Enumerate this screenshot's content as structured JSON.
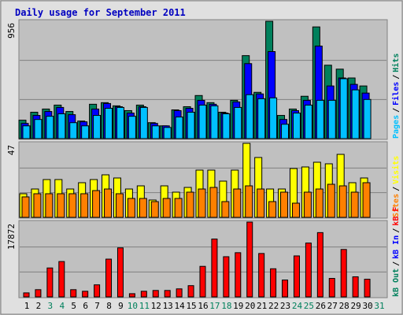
{
  "chart_data": [
    {
      "type": "bar",
      "title": "Daily usage for September 2011",
      "ylim": [
        0,
        956
      ],
      "yticks": [
        956
      ],
      "grid": true,
      "legend_separator": "/",
      "series": [
        {
          "name": "Hits",
          "color": "#00805c",
          "values": [
            150,
            215,
            241,
            273,
            221,
            143,
            280,
            293,
            267,
            228,
            273,
            130,
            104,
            234,
            260,
            351,
            293,
            215,
            312,
            676,
            377,
            956,
            189,
            241,
            345,
            910,
            598,
            566,
            494,
            429,
            0
          ]
        },
        {
          "name": "Files",
          "color": "#0000ff",
          "values": [
            124,
            189,
            221,
            254,
            195,
            137,
            241,
            286,
            260,
            208,
            260,
            124,
            104,
            228,
            247,
            312,
            280,
            208,
            299,
            611,
            364,
            709,
            156,
            228,
            312,
            754,
            429,
            494,
            442,
            371,
            0
          ]
        },
        {
          "name": "Pages",
          "color": "#00c0ff",
          "values": [
            104,
            156,
            182,
            202,
            130,
            104,
            189,
            247,
            254,
            182,
            254,
            104,
            91,
            176,
            215,
            273,
            267,
            202,
            254,
            358,
            325,
            332,
            117,
            208,
            273,
            312,
            312,
            488,
            397,
            319,
            0
          ]
        }
      ]
    },
    {
      "type": "bar",
      "ylim": [
        0,
        47
      ],
      "yticks": [
        47
      ],
      "grid": true,
      "legend_separator": "/",
      "series": [
        {
          "name": "Visits",
          "color": "#ffff00",
          "values": [
            15,
            18,
            24,
            24,
            18,
            22,
            24,
            27,
            25,
            18,
            20,
            11,
            20,
            16,
            19,
            30,
            30,
            23,
            30,
            47,
            38,
            18,
            18,
            31,
            32,
            35,
            34,
            40,
            22,
            25,
            0
          ]
        },
        {
          "name": "Sites",
          "color": "#ff8000",
          "values": [
            13,
            15,
            15,
            15,
            15,
            15,
            17,
            18,
            15,
            12,
            12,
            10,
            12,
            12,
            16,
            18,
            19,
            10,
            18,
            20,
            18,
            10,
            16,
            9,
            16,
            18,
            21,
            20,
            16,
            22,
            0
          ]
        }
      ]
    },
    {
      "type": "bar",
      "ylim": [
        0,
        17872
      ],
      "yticks": [
        17872
      ],
      "grid": true,
      "legend_separator": "/",
      "categories": [
        "1",
        "2",
        "3",
        "4",
        "5",
        "6",
        "7",
        "8",
        "9",
        "10",
        "11",
        "12",
        "13",
        "14",
        "15",
        "16",
        "17",
        "18",
        "19",
        "20",
        "21",
        "22",
        "23",
        "24",
        "25",
        "26",
        "27",
        "28",
        "29",
        "30",
        "31"
      ],
      "weekend": [
        "3",
        "4",
        "10",
        "11",
        "17",
        "18",
        "24",
        "25",
        "31"
      ],
      "weekend_color": "#00805c",
      "series": [
        {
          "name": "kB F",
          "color": "#ff0000",
          "values": [
            960,
            1728,
            6912,
            8448,
            1728,
            1344,
            2880,
            9024,
            11712,
            768,
            1344,
            1536,
            1536,
            1920,
            2688,
            7296,
            13824,
            9600,
            10560,
            17872,
            10368,
            6720,
            4032,
            9792,
            12864,
            15360,
            4416,
            11328,
            4800,
            4224,
            0
          ]
        }
      ],
      "legend_only": [
        {
          "name": "kB In",
          "color": "#0000ff"
        },
        {
          "name": "kB Out",
          "color": "#00805c"
        }
      ]
    }
  ]
}
